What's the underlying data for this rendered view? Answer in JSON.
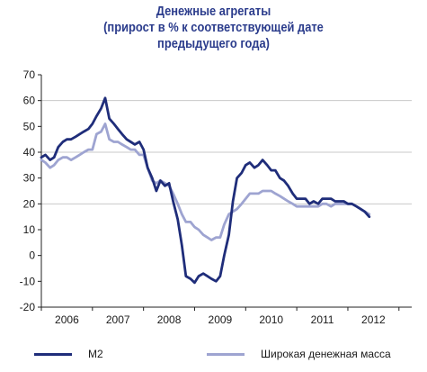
{
  "chart_data": {
    "type": "line",
    "title_lines": [
      "Денежные агрегаты",
      "(прирост в % к соответствующей дате",
      "предыдущего года)"
    ],
    "xlabel": "",
    "ylabel": "",
    "ylim": [
      -20,
      70
    ],
    "yticks": [
      -20,
      -10,
      0,
      10,
      20,
      30,
      40,
      50,
      60,
      70
    ],
    "xlim": [
      2005.5,
      2012.75
    ],
    "x_tick_labels": [
      "2006",
      "2007",
      "2008",
      "2009",
      "2010",
      "2011",
      "2012"
    ],
    "x_tick_centers": [
      2006,
      2007,
      2008,
      2009,
      2010,
      2011,
      2012
    ],
    "x_period_boundaries": [
      2005.5,
      2006.5,
      2007.5,
      2008.5,
      2009.5,
      2010.5,
      2011.5,
      2012.5
    ],
    "grid": "horizontal at y=20, 40, 60",
    "legend_position": "bottom",
    "series": [
      {
        "name": "М2",
        "color": "#1f2d7a",
        "points": [
          [
            2005.5,
            38
          ],
          [
            2005.58,
            39
          ],
          [
            2005.67,
            37
          ],
          [
            2005.75,
            38
          ],
          [
            2005.83,
            42
          ],
          [
            2005.92,
            44
          ],
          [
            2006.0,
            45
          ],
          [
            2006.08,
            45
          ],
          [
            2006.17,
            46
          ],
          [
            2006.25,
            47
          ],
          [
            2006.33,
            48
          ],
          [
            2006.42,
            49
          ],
          [
            2006.5,
            51
          ],
          [
            2006.58,
            54
          ],
          [
            2006.67,
            57
          ],
          [
            2006.75,
            61
          ],
          [
            2006.83,
            53
          ],
          [
            2006.92,
            51
          ],
          [
            2007.0,
            49
          ],
          [
            2007.08,
            47
          ],
          [
            2007.17,
            45
          ],
          [
            2007.25,
            44
          ],
          [
            2007.33,
            43
          ],
          [
            2007.42,
            44
          ],
          [
            2007.5,
            41
          ],
          [
            2007.58,
            34
          ],
          [
            2007.67,
            30
          ],
          [
            2007.75,
            25
          ],
          [
            2007.83,
            29
          ],
          [
            2007.92,
            27
          ],
          [
            2008.0,
            28
          ],
          [
            2008.08,
            21
          ],
          [
            2008.17,
            14
          ],
          [
            2008.25,
            4
          ],
          [
            2008.33,
            -8
          ],
          [
            2008.42,
            -9
          ],
          [
            2008.5,
            -10.5
          ],
          [
            2008.58,
            -8
          ],
          [
            2008.67,
            -7
          ],
          [
            2008.75,
            -8
          ],
          [
            2008.83,
            -9
          ],
          [
            2008.92,
            -10
          ],
          [
            2009.0,
            -8
          ],
          [
            2009.08,
            0
          ],
          [
            2009.17,
            8
          ],
          [
            2009.25,
            21
          ],
          [
            2009.33,
            30
          ],
          [
            2009.42,
            32
          ],
          [
            2009.5,
            35
          ],
          [
            2009.58,
            36
          ],
          [
            2009.67,
            34
          ],
          [
            2009.75,
            35
          ],
          [
            2009.83,
            37
          ],
          [
            2009.92,
            35
          ],
          [
            2010.0,
            33
          ],
          [
            2010.08,
            33
          ],
          [
            2010.17,
            30
          ],
          [
            2010.25,
            29
          ],
          [
            2010.33,
            27
          ],
          [
            2010.42,
            24
          ],
          [
            2010.5,
            22
          ],
          [
            2010.58,
            22
          ],
          [
            2010.67,
            22
          ],
          [
            2010.75,
            20
          ],
          [
            2010.83,
            21
          ],
          [
            2010.92,
            20
          ],
          [
            2011.0,
            22
          ],
          [
            2011.08,
            22
          ],
          [
            2011.17,
            22
          ],
          [
            2011.25,
            21
          ],
          [
            2011.33,
            21
          ],
          [
            2011.42,
            21
          ],
          [
            2011.5,
            20
          ],
          [
            2011.58,
            20
          ],
          [
            2011.67,
            19
          ],
          [
            2011.75,
            18
          ],
          [
            2011.83,
            17
          ],
          [
            2011.92,
            15
          ]
        ]
      },
      {
        "name": "Широкая денежная масса",
        "color": "#9ea4d1",
        "points": [
          [
            2005.5,
            37
          ],
          [
            2005.58,
            36
          ],
          [
            2005.67,
            34
          ],
          [
            2005.75,
            35
          ],
          [
            2005.83,
            37
          ],
          [
            2005.92,
            38
          ],
          [
            2006.0,
            38
          ],
          [
            2006.08,
            37
          ],
          [
            2006.17,
            38
          ],
          [
            2006.25,
            39
          ],
          [
            2006.33,
            40
          ],
          [
            2006.42,
            41
          ],
          [
            2006.5,
            41
          ],
          [
            2006.58,
            47
          ],
          [
            2006.67,
            48
          ],
          [
            2006.75,
            51
          ],
          [
            2006.83,
            45
          ],
          [
            2006.92,
            44
          ],
          [
            2007.0,
            44
          ],
          [
            2007.08,
            43
          ],
          [
            2007.17,
            42
          ],
          [
            2007.25,
            41
          ],
          [
            2007.33,
            41
          ],
          [
            2007.42,
            39
          ],
          [
            2007.5,
            39
          ],
          [
            2007.58,
            34
          ],
          [
            2007.67,
            29
          ],
          [
            2007.75,
            28
          ],
          [
            2007.83,
            29
          ],
          [
            2007.92,
            28
          ],
          [
            2008.0,
            27
          ],
          [
            2008.08,
            24
          ],
          [
            2008.17,
            20
          ],
          [
            2008.25,
            16
          ],
          [
            2008.33,
            13
          ],
          [
            2008.42,
            13
          ],
          [
            2008.5,
            11
          ],
          [
            2008.58,
            10
          ],
          [
            2008.67,
            8
          ],
          [
            2008.75,
            7
          ],
          [
            2008.83,
            6
          ],
          [
            2008.92,
            7
          ],
          [
            2009.0,
            7
          ],
          [
            2009.08,
            12
          ],
          [
            2009.17,
            16
          ],
          [
            2009.25,
            17
          ],
          [
            2009.33,
            18
          ],
          [
            2009.42,
            20
          ],
          [
            2009.5,
            22
          ],
          [
            2009.58,
            24
          ],
          [
            2009.67,
            24
          ],
          [
            2009.75,
            24
          ],
          [
            2009.83,
            25
          ],
          [
            2009.92,
            25
          ],
          [
            2010.0,
            25
          ],
          [
            2010.08,
            24
          ],
          [
            2010.17,
            23
          ],
          [
            2010.25,
            22
          ],
          [
            2010.33,
            21
          ],
          [
            2010.42,
            20
          ],
          [
            2010.5,
            19
          ],
          [
            2010.58,
            19
          ],
          [
            2010.67,
            19
          ],
          [
            2010.75,
            19
          ],
          [
            2010.83,
            19
          ],
          [
            2010.92,
            19
          ],
          [
            2011.0,
            20
          ],
          [
            2011.08,
            20
          ],
          [
            2011.17,
            19
          ],
          [
            2011.25,
            20
          ],
          [
            2011.33,
            20
          ],
          [
            2011.42,
            20
          ],
          [
            2011.5,
            20
          ],
          [
            2011.58,
            20
          ],
          [
            2011.67,
            19
          ],
          [
            2011.75,
            18
          ],
          [
            2011.83,
            17
          ],
          [
            2011.92,
            16
          ]
        ]
      }
    ]
  }
}
